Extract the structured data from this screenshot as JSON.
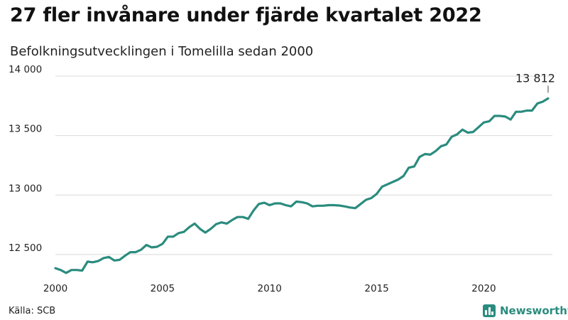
{
  "title": "27 fler invånare under fjärde kvartalet 2022",
  "subtitle": "Befolkningsutvecklingen i Tomelilla sedan 2000",
  "source": "Källa: SCB",
  "brand": {
    "name": "Newsworthy",
    "logo_icon": "bar-chart-icon",
    "color": "#2a8c7e"
  },
  "chart_data": {
    "type": "line",
    "title": "27 fler invånare under fjärde kvartalet 2022",
    "subtitle": "Befolkningsutvecklingen i Tomelilla sedan 2000",
    "xlabel": "",
    "ylabel": "",
    "xlim": [
      2000,
      2023.2
    ],
    "ylim": [
      12350,
      14000
    ],
    "x_ticks": [
      2000,
      2005,
      2010,
      2015,
      2020
    ],
    "x_tick_labels": [
      "2000",
      "2005",
      "2010",
      "2015",
      "2020"
    ],
    "y_ticks": [
      12500,
      13000,
      13500,
      14000
    ],
    "y_tick_labels": [
      "12 500",
      "13 000",
      "13 500",
      "14 000"
    ],
    "grid": "horizontal",
    "line_color": "#2a8c7e",
    "end_label": "13 812",
    "series": [
      {
        "x": [
          2000.0,
          2000.25,
          2000.5,
          2000.75,
          2001.0,
          2001.25,
          2001.5,
          2001.75,
          2002.0,
          2002.25,
          2002.5,
          2002.75,
          2003.0,
          2003.25,
          2003.5,
          2003.75,
          2004.0,
          2004.25,
          2004.5,
          2004.75,
          2005.0,
          2005.25,
          2005.5,
          2005.75,
          2006.0,
          2006.25,
          2006.5,
          2006.75,
          2007.0,
          2007.25,
          2007.5,
          2007.75,
          2008.0,
          2008.25,
          2008.5,
          2008.75,
          2009.0,
          2009.25,
          2009.5,
          2009.75,
          2010.0,
          2010.25,
          2010.5,
          2010.75,
          2011.0,
          2011.25,
          2011.5,
          2011.75,
          2012.0,
          2012.25,
          2012.5,
          2012.75,
          2013.0,
          2013.25,
          2013.5,
          2013.75,
          2014.0,
          2014.25,
          2014.5,
          2014.75,
          2015.0,
          2015.25,
          2015.5,
          2015.75,
          2016.0,
          2016.25,
          2016.5,
          2016.75,
          2017.0,
          2017.25,
          2017.5,
          2017.75,
          2018.0,
          2018.25,
          2018.5,
          2018.75,
          2019.0,
          2019.25,
          2019.5,
          2019.75,
          2020.0,
          2020.25,
          2020.5,
          2020.75,
          2021.0,
          2021.25,
          2021.5,
          2021.75,
          2022.0,
          2022.25,
          2022.5,
          2022.75,
          2023.0
        ],
        "values": [
          12385,
          12370,
          12345,
          12370,
          12370,
          12365,
          12440,
          12435,
          12445,
          12470,
          12480,
          12450,
          12455,
          12490,
          12520,
          12520,
          12540,
          12580,
          12560,
          12565,
          12590,
          12650,
          12650,
          12680,
          12690,
          12730,
          12760,
          12715,
          12685,
          12715,
          12755,
          12770,
          12760,
          12790,
          12815,
          12815,
          12800,
          12870,
          12925,
          12935,
          12915,
          12930,
          12930,
          12915,
          12905,
          12945,
          12940,
          12930,
          12905,
          12910,
          12910,
          12915,
          12915,
          12912,
          12905,
          12895,
          12890,
          12925,
          12960,
          12975,
          13010,
          13070,
          13090,
          13110,
          13130,
          13160,
          13230,
          13240,
          13320,
          13345,
          13340,
          13370,
          13410,
          13425,
          13490,
          13510,
          13550,
          13525,
          13530,
          13570,
          13610,
          13620,
          13665,
          13665,
          13660,
          13635,
          13700,
          13700,
          13710,
          13710,
          13770,
          13785,
          13812
        ]
      }
    ]
  }
}
